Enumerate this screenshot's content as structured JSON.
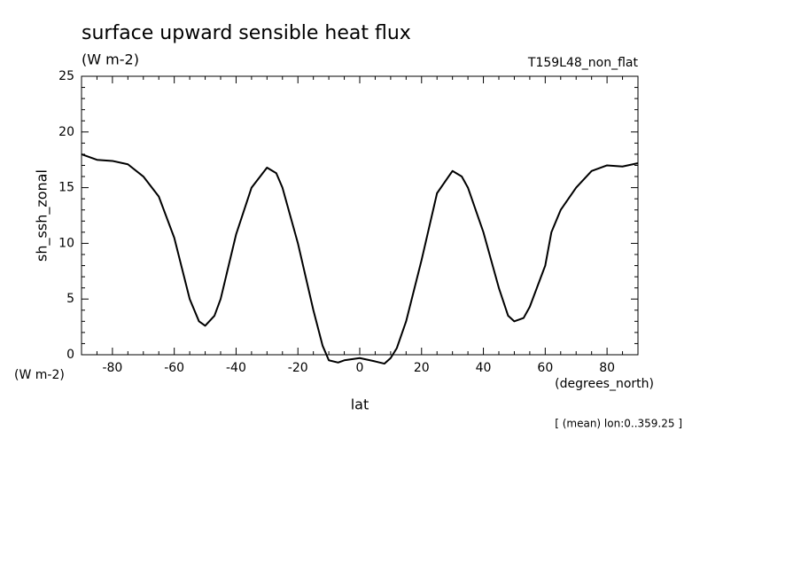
{
  "chart_data": {
    "type": "line",
    "title": "surface upward sensible heat flux",
    "units": "(W m-2)",
    "run_label": "T159L48_non_flat",
    "y_label": "sh_ssh_zonal",
    "y_units": "(W m-2)",
    "x_units": "(degrees_north)",
    "x_label": "lat",
    "note": "[ (mean) lon:0..359.25 ]",
    "x": [
      -90,
      -85,
      -80,
      -75,
      -70,
      -65,
      -60,
      -55,
      -52,
      -50,
      -47,
      -45,
      -40,
      -35,
      -30,
      -27,
      -25,
      -20,
      -15,
      -12,
      -10,
      -7,
      -5,
      0,
      5,
      8,
      10,
      12,
      15,
      20,
      25,
      30,
      33,
      35,
      40,
      45,
      48,
      50,
      53,
      55,
      60,
      62,
      65,
      70,
      75,
      80,
      85,
      90
    ],
    "series": [
      {
        "color": "#000000",
        "values": [
          18.0,
          17.5,
          17.4,
          17.1,
          16.0,
          14.2,
          10.5,
          5.0,
          3.0,
          2.6,
          3.5,
          5.0,
          10.8,
          15.0,
          16.8,
          16.3,
          15.0,
          10.0,
          4.0,
          0.8,
          -0.5,
          -0.7,
          -0.5,
          -0.3,
          -0.6,
          -0.8,
          -0.3,
          0.6,
          3.0,
          8.5,
          14.5,
          16.5,
          16.0,
          15.0,
          11.0,
          6.0,
          3.5,
          3.0,
          3.3,
          4.3,
          8.0,
          11.0,
          13.0,
          15.0,
          16.5,
          17.0,
          16.9,
          17.2
        ]
      }
    ],
    "xlim": [
      -90,
      90
    ],
    "ylim": [
      0,
      25
    ],
    "xticks": [
      -80,
      -60,
      -40,
      -20,
      0,
      20,
      40,
      60,
      80
    ],
    "yticks": [
      0,
      5,
      10,
      15,
      20,
      25
    ],
    "xminorticks": [
      -90,
      -85,
      -75,
      -70,
      -65,
      -55,
      -50,
      -45,
      -35,
      -30,
      -25,
      -15,
      -10,
      -5,
      5,
      10,
      15,
      25,
      30,
      35,
      45,
      50,
      55,
      65,
      70,
      75,
      85,
      90
    ],
    "yminorticks": [
      1,
      2,
      3,
      4,
      6,
      7,
      8,
      9,
      11,
      12,
      13,
      14,
      16,
      17,
      18,
      19,
      21,
      22,
      23,
      24
    ]
  }
}
